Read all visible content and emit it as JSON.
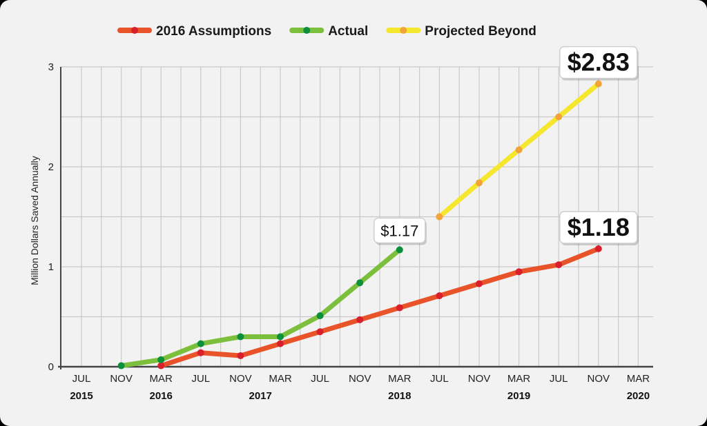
{
  "chart_data": {
    "type": "line",
    "title": "",
    "xlabel": "",
    "ylabel": "Million Dollars Saved Annually",
    "ylim": [
      0,
      3
    ],
    "y_ticks": [
      "0",
      "1",
      "2",
      "3"
    ],
    "x_ticks": [
      "JUL",
      "NOV",
      "MAR",
      "JUL",
      "NOV",
      "MAR",
      "JUL",
      "NOV",
      "MAR",
      "JUL",
      "NOV",
      "MAR",
      "JUL",
      "NOV",
      "MAR"
    ],
    "x_years": [
      {
        "label": "2015",
        "at": 0
      },
      {
        "label": "2016",
        "at": 2
      },
      {
        "label": "2017",
        "at": 4.5
      },
      {
        "label": "2018",
        "at": 8
      },
      {
        "label": "2019",
        "at": 11
      },
      {
        "label": "2020",
        "at": 14
      }
    ],
    "series": [
      {
        "name": "2016 Assumptions",
        "line_color": "#e8532a",
        "marker_color": "#d91f2b",
        "x": [
          2,
          3,
          4,
          5,
          6,
          7,
          8,
          9,
          10,
          11,
          12,
          13
        ],
        "values": [
          0.01,
          0.14,
          0.11,
          0.23,
          0.35,
          0.47,
          0.59,
          0.71,
          0.83,
          0.95,
          1.02,
          1.18
        ]
      },
      {
        "name": "Actual",
        "line_color": "#7bbf3c",
        "marker_color": "#0a8f3a",
        "x": [
          1,
          2,
          3,
          4,
          5,
          6,
          7,
          8
        ],
        "values": [
          0.01,
          0.07,
          0.23,
          0.3,
          0.3,
          0.51,
          0.84,
          1.17
        ]
      },
      {
        "name": "Projected Beyond",
        "line_color": "#f5e62e",
        "marker_color": "#f2a33a",
        "x": [
          9,
          10,
          11,
          12,
          13
        ],
        "values": [
          1.5,
          1.84,
          2.17,
          2.5,
          2.83
        ]
      }
    ],
    "annotations": [
      {
        "text": "$1.17",
        "series": "Actual",
        "style": "small"
      },
      {
        "text": "$2.83",
        "series": "Projected Beyond",
        "style": "big"
      },
      {
        "text": "$1.18",
        "series": "2016 Assumptions",
        "style": "big"
      }
    ],
    "legend": "top"
  }
}
